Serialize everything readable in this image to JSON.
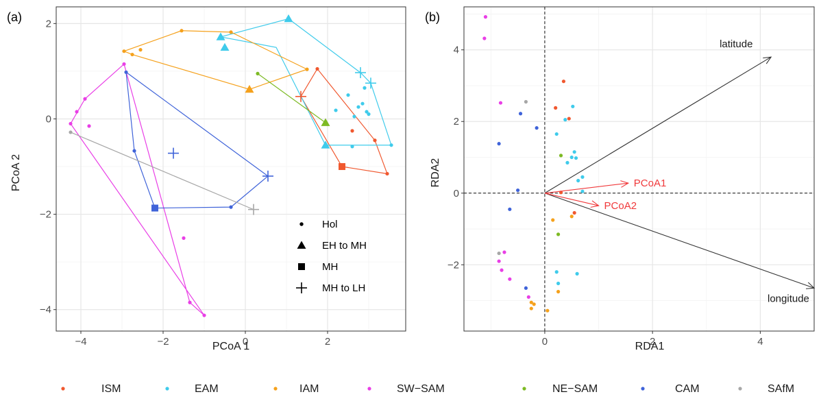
{
  "colors": {
    "ISM": "#f0582f",
    "EAM": "#3fcbeb",
    "IAM": "#f5a11c",
    "SW-SAM": "#e93fe6",
    "NE-SAM": "#7dba24",
    "CAM": "#3f63d9",
    "SAfM": "#a7a7a7"
  },
  "legend_bottom": [
    "ISM",
    "EAM",
    "IAM",
    "SW-SAM",
    "NE-SAM",
    "CAM",
    "SAfM"
  ],
  "chart_data": [
    {
      "panel": "(a)",
      "type": "scatter",
      "xlabel": "PCoA 1",
      "ylabel": "PCoA 2",
      "xlim": [
        -4.6,
        3.9
      ],
      "ylim": [
        -4.45,
        2.35
      ],
      "xticks": [
        -4,
        -2,
        0,
        2
      ],
      "yticks": [
        -4,
        -2,
        0,
        2
      ],
      "grid": true,
      "shape_legend": {
        "placement": "bottom-right inside",
        "items": [
          {
            "shape": "dot",
            "label": "Hol"
          },
          {
            "shape": "triangle",
            "label": "EH to MH"
          },
          {
            "shape": "square",
            "label": "MH"
          },
          {
            "shape": "plus",
            "label": "MH to LH"
          }
        ]
      },
      "hulls": [
        {
          "group": "ISM",
          "points": [
            [
              1.75,
              1.05
            ],
            [
              1.35,
              0.47
            ],
            [
              2.35,
              -1.0
            ],
            [
              3.45,
              -1.15
            ],
            [
              3.15,
              -0.45
            ]
          ]
        },
        {
          "group": "EAM",
          "points": [
            [
              1.05,
              2.1
            ],
            [
              2.8,
              0.97
            ],
            [
              3.05,
              0.75
            ],
            [
              3.55,
              -0.55
            ],
            [
              1.95,
              -0.55
            ],
            [
              0.75,
              1.5
            ],
            [
              -0.6,
              1.72
            ]
          ]
        },
        {
          "group": "IAM",
          "points": [
            [
              -2.95,
              1.42
            ],
            [
              -1.55,
              1.85
            ],
            [
              -0.35,
              1.82
            ],
            [
              1.5,
              1.04
            ],
            [
              0.1,
              0.62
            ],
            [
              -2.75,
              1.35
            ]
          ]
        },
        {
          "group": "SW-SAM",
          "points": [
            [
              -2.95,
              1.15
            ],
            [
              -1.35,
              -3.85
            ],
            [
              -1.0,
              -4.12
            ],
            [
              -4.25,
              -0.1
            ],
            [
              -3.9,
              0.42
            ]
          ]
        },
        {
          "group": "NE-SAM",
          "points": [
            [
              0.3,
              0.95
            ],
            [
              1.95,
              -0.08
            ]
          ]
        },
        {
          "group": "CAM",
          "points": [
            [
              -2.9,
              0.98
            ],
            [
              0.55,
              -1.2
            ],
            [
              -0.35,
              -1.85
            ],
            [
              -2.2,
              -1.87
            ],
            [
              -2.7,
              -0.67
            ]
          ]
        },
        {
          "group": "SAfM",
          "points": [
            [
              -4.25,
              -0.28
            ],
            [
              0.2,
              -1.9
            ]
          ]
        }
      ],
      "series": [
        {
          "name": "Hol",
          "shape": "dot",
          "points": [
            {
              "g": "ISM",
              "x": 1.75,
              "y": 1.05
            },
            {
              "g": "ISM",
              "x": 2.6,
              "y": -0.25
            },
            {
              "g": "ISM",
              "x": 3.15,
              "y": -0.45
            },
            {
              "g": "ISM",
              "x": 3.45,
              "y": -1.15
            },
            {
              "g": "EAM",
              "x": 2.65,
              "y": 0.05
            },
            {
              "g": "EAM",
              "x": 2.75,
              "y": 0.25
            },
            {
              "g": "EAM",
              "x": 2.95,
              "y": 0.15
            },
            {
              "g": "EAM",
              "x": 2.5,
              "y": 0.5
            },
            {
              "g": "EAM",
              "x": 3.0,
              "y": 0.1
            },
            {
              "g": "EAM",
              "x": 2.9,
              "y": 0.65
            },
            {
              "g": "EAM",
              "x": 2.6,
              "y": -0.58
            },
            {
              "g": "EAM",
              "x": 2.2,
              "y": 0.18
            },
            {
              "g": "EAM",
              "x": 3.55,
              "y": -0.55
            },
            {
              "g": "EAM",
              "x": 2.85,
              "y": 0.32
            },
            {
              "g": "IAM",
              "x": -2.95,
              "y": 1.42
            },
            {
              "g": "IAM",
              "x": -2.75,
              "y": 1.35
            },
            {
              "g": "IAM",
              "x": -2.55,
              "y": 1.45
            },
            {
              "g": "IAM",
              "x": -1.55,
              "y": 1.85
            },
            {
              "g": "IAM",
              "x": -0.35,
              "y": 1.82
            },
            {
              "g": "IAM",
              "x": 1.5,
              "y": 1.04
            },
            {
              "g": "SW-SAM",
              "x": -2.95,
              "y": 1.15
            },
            {
              "g": "SW-SAM",
              "x": -3.9,
              "y": 0.42
            },
            {
              "g": "SW-SAM",
              "x": -4.1,
              "y": 0.15
            },
            {
              "g": "SW-SAM",
              "x": -4.25,
              "y": -0.1
            },
            {
              "g": "SW-SAM",
              "x": -3.8,
              "y": -0.15
            },
            {
              "g": "SW-SAM",
              "x": -1.5,
              "y": -2.5
            },
            {
              "g": "SW-SAM",
              "x": -1.35,
              "y": -3.85
            },
            {
              "g": "SW-SAM",
              "x": -1.0,
              "y": -4.12
            },
            {
              "g": "NE-SAM",
              "x": 0.3,
              "y": 0.95
            },
            {
              "g": "CAM",
              "x": -2.9,
              "y": 0.98
            },
            {
              "g": "CAM",
              "x": -2.7,
              "y": -0.67
            },
            {
              "g": "CAM",
              "x": -0.35,
              "y": -1.85
            },
            {
              "g": "SAfM",
              "x": -4.25,
              "y": -0.28
            }
          ]
        },
        {
          "name": "EH to MH",
          "shape": "triangle",
          "points": [
            {
              "g": "EAM",
              "x": 1.05,
              "y": 2.1
            },
            {
              "g": "EAM",
              "x": -0.6,
              "y": 1.72
            },
            {
              "g": "EAM",
              "x": -0.5,
              "y": 1.5
            },
            {
              "g": "EAM",
              "x": 1.95,
              "y": -0.55
            },
            {
              "g": "IAM",
              "x": 0.1,
              "y": 0.62
            },
            {
              "g": "NE-SAM",
              "x": 1.95,
              "y": -0.08
            }
          ]
        },
        {
          "name": "MH",
          "shape": "square",
          "points": [
            {
              "g": "ISM",
              "x": 2.35,
              "y": -1.0
            },
            {
              "g": "CAM",
              "x": -2.2,
              "y": -1.87
            }
          ]
        },
        {
          "name": "MH to LH",
          "shape": "plus",
          "points": [
            {
              "g": "ISM",
              "x": 1.35,
              "y": 0.47
            },
            {
              "g": "EAM",
              "x": 2.8,
              "y": 0.97
            },
            {
              "g": "EAM",
              "x": 3.05,
              "y": 0.75
            },
            {
              "g": "CAM",
              "x": -1.75,
              "y": -0.72
            },
            {
              "g": "CAM",
              "x": 0.55,
              "y": -1.2
            },
            {
              "g": "SAfM",
              "x": 0.2,
              "y": -1.9
            }
          ]
        }
      ]
    },
    {
      "panel": "(b)",
      "type": "scatter",
      "xlabel": "RDA1",
      "ylabel": "RDA2",
      "xlim": [
        -1.5,
        5.0
      ],
      "ylim": [
        -3.85,
        5.2
      ],
      "xticks": [
        0,
        2,
        4
      ],
      "yticks": [
        -2,
        0,
        2,
        4
      ],
      "grid": true,
      "reference_lines": [
        "x = 0 dashed",
        "y = 0 dashed"
      ],
      "arrows": [
        {
          "label": "latitude",
          "x": 4.2,
          "y": 3.8,
          "color": "#333333"
        },
        {
          "label": "longitude",
          "x": 5.0,
          "y": -2.65,
          "color": "#333333"
        },
        {
          "label": "PCoA1",
          "x": 1.55,
          "y": 0.28,
          "color": "#f0383a"
        },
        {
          "label": "PCoA2",
          "x": 1.0,
          "y": -0.35,
          "color": "#f0383a"
        }
      ],
      "points": [
        {
          "g": "ISM",
          "x": 0.35,
          "y": 3.12
        },
        {
          "g": "ISM",
          "x": 0.2,
          "y": 2.38
        },
        {
          "g": "ISM",
          "x": 0.45,
          "y": 2.08
        },
        {
          "g": "ISM",
          "x": 0.3,
          "y": 0.02
        },
        {
          "g": "ISM",
          "x": 0.55,
          "y": -0.55
        },
        {
          "g": "EAM",
          "x": 0.52,
          "y": 2.42
        },
        {
          "g": "EAM",
          "x": 0.38,
          "y": 2.05
        },
        {
          "g": "EAM",
          "x": 0.22,
          "y": 1.65
        },
        {
          "g": "EAM",
          "x": 0.55,
          "y": 1.15
        },
        {
          "g": "EAM",
          "x": 0.5,
          "y": 1.0
        },
        {
          "g": "EAM",
          "x": 0.58,
          "y": 0.98
        },
        {
          "g": "EAM",
          "x": 0.42,
          "y": 0.85
        },
        {
          "g": "EAM",
          "x": 0.62,
          "y": 0.35
        },
        {
          "g": "EAM",
          "x": 0.7,
          "y": 0.45
        },
        {
          "g": "EAM",
          "x": 0.7,
          "y": 0.05
        },
        {
          "g": "EAM",
          "x": 0.22,
          "y": -2.2
        },
        {
          "g": "EAM",
          "x": 0.25,
          "y": -2.52
        },
        {
          "g": "EAM",
          "x": 0.6,
          "y": -2.25
        },
        {
          "g": "IAM",
          "x": 0.5,
          "y": -0.65
        },
        {
          "g": "IAM",
          "x": 0.15,
          "y": -0.75
        },
        {
          "g": "IAM",
          "x": 0.25,
          "y": -2.75
        },
        {
          "g": "IAM",
          "x": -0.25,
          "y": -3.05
        },
        {
          "g": "IAM",
          "x": -0.2,
          "y": -3.1
        },
        {
          "g": "IAM",
          "x": -0.25,
          "y": -3.22
        },
        {
          "g": "IAM",
          "x": 0.05,
          "y": -3.28
        },
        {
          "g": "SW-SAM",
          "x": -1.1,
          "y": 4.92
        },
        {
          "g": "SW-SAM",
          "x": -1.12,
          "y": 4.32
        },
        {
          "g": "SW-SAM",
          "x": -0.82,
          "y": 2.52
        },
        {
          "g": "SW-SAM",
          "x": -0.75,
          "y": -1.65
        },
        {
          "g": "SW-SAM",
          "x": -0.85,
          "y": -1.9
        },
        {
          "g": "SW-SAM",
          "x": -0.8,
          "y": -2.15
        },
        {
          "g": "SW-SAM",
          "x": -0.65,
          "y": -2.4
        },
        {
          "g": "SW-SAM",
          "x": -0.3,
          "y": -2.9
        },
        {
          "g": "NE-SAM",
          "x": 0.3,
          "y": 1.05
        },
        {
          "g": "NE-SAM",
          "x": 0.25,
          "y": -1.15
        },
        {
          "g": "CAM",
          "x": -0.45,
          "y": 2.22
        },
        {
          "g": "CAM",
          "x": -0.15,
          "y": 1.82
        },
        {
          "g": "CAM",
          "x": -0.85,
          "y": 1.38
        },
        {
          "g": "CAM",
          "x": -0.5,
          "y": 0.08
        },
        {
          "g": "CAM",
          "x": -0.65,
          "y": -0.45
        },
        {
          "g": "CAM",
          "x": -0.35,
          "y": -2.65
        },
        {
          "g": "SAfM",
          "x": -0.35,
          "y": 2.55
        },
        {
          "g": "SAfM",
          "x": -0.85,
          "y": -1.68
        }
      ]
    }
  ]
}
